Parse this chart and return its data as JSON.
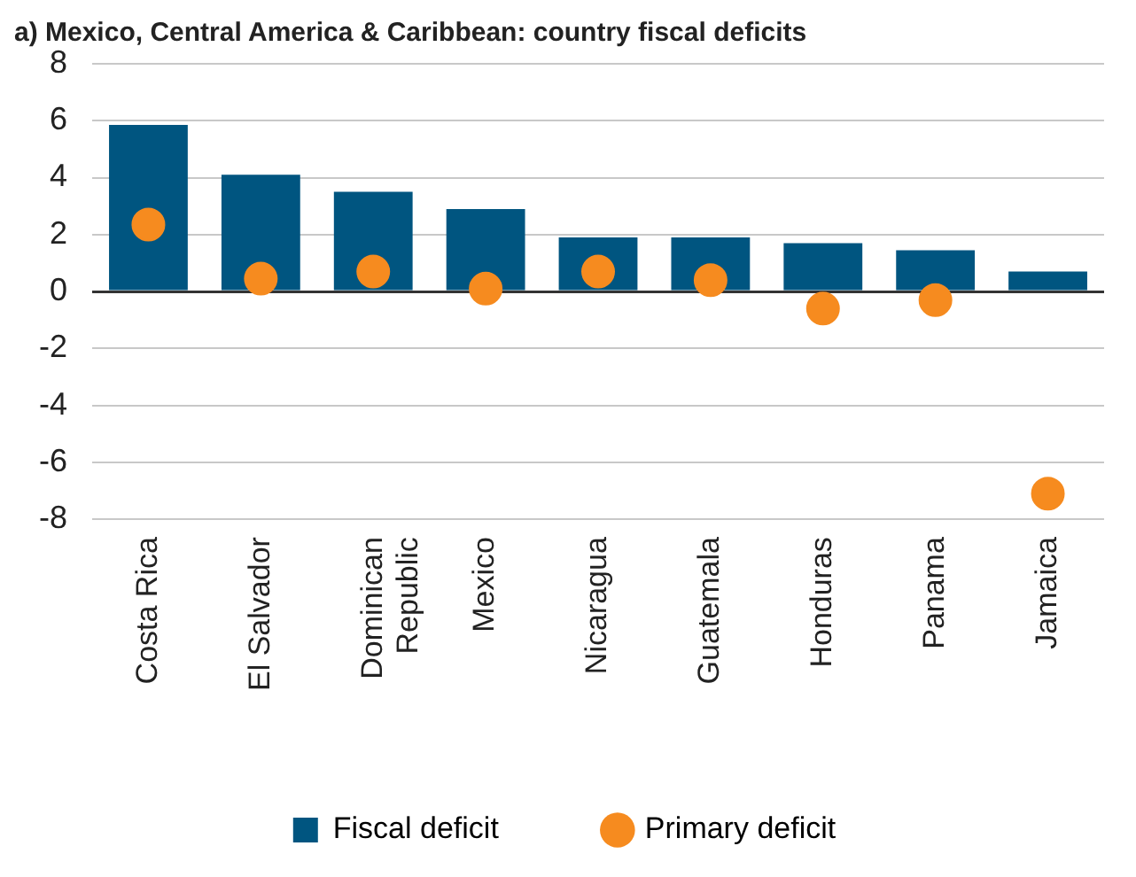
{
  "chart_data": {
    "type": "bar",
    "title": "a) Mexico, Central America & Caribbean: country fiscal deficits",
    "categories": [
      "Costa Rica",
      "El Salvador",
      "Dominican Republic",
      "Mexico",
      "Nicaragua",
      "Guatemala",
      "Honduras",
      "Panama",
      "Jamaica"
    ],
    "series": [
      {
        "name": "Fiscal deficit",
        "color": "#005580",
        "values": [
          5.85,
          4.1,
          3.5,
          2.9,
          1.9,
          1.9,
          1.7,
          1.45,
          0.7
        ]
      },
      {
        "name": "Primary deficit",
        "type": "scatter",
        "color": "#f68b1f",
        "values": [
          2.35,
          0.45,
          0.7,
          0.1,
          0.7,
          0.4,
          -0.6,
          -0.3,
          -7.1
        ]
      }
    ],
    "ylim": [
      -8,
      8
    ],
    "yticks": [
      -8,
      -6,
      -4,
      -2,
      0,
      2,
      4,
      6,
      8
    ],
    "grid": "y",
    "legend": "bottom",
    "marker": "circle"
  }
}
